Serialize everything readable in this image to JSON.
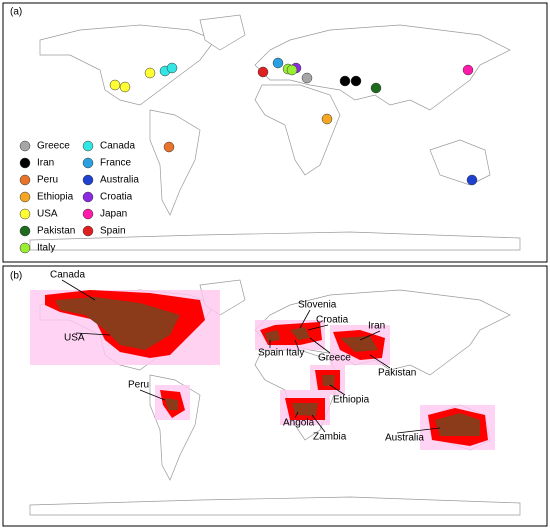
{
  "panel_a": {
    "label": "(a)",
    "legend": [
      {
        "name": "Greece",
        "color": "#a6a6a6"
      },
      {
        "name": "Iran",
        "color": "#000000"
      },
      {
        "name": "Peru",
        "color": "#e8732a"
      },
      {
        "name": "Ethiopia",
        "color": "#f5a623"
      },
      {
        "name": "USA",
        "color": "#ffff33"
      },
      {
        "name": "Pakistan",
        "color": "#1e6b1e"
      },
      {
        "name": "Italy",
        "color": "#99ee33"
      },
      {
        "name": "Canada",
        "color": "#33e6e6"
      },
      {
        "name": "France",
        "color": "#2aa0e0"
      },
      {
        "name": "Australia",
        "color": "#2040d0"
      },
      {
        "name": "Croatia",
        "color": "#8a2be2"
      },
      {
        "name": "Japan",
        "color": "#ff1aaa"
      },
      {
        "name": "Spain",
        "color": "#e02020"
      }
    ]
  },
  "panel_b": {
    "label": "(b)",
    "labels": [
      "Canada",
      "USA",
      "Peru",
      "Slovenia",
      "Croatia",
      "Spain",
      "Italy",
      "Greece",
      "Iran",
      "Pakistan",
      "Ethiopia",
      "Angola",
      "Zambia",
      "Australia"
    ]
  }
}
